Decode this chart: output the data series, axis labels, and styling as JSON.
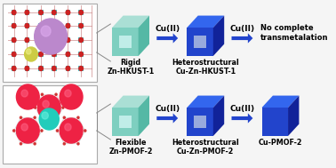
{
  "bg_color": "#f5f5f5",
  "teal_face": "#7ecfc0",
  "teal_top": "#aadfd5",
  "teal_side": "#55b8a5",
  "teal_notch": "#c0ede8",
  "blue_face": "#2244cc",
  "blue_top": "#3366ee",
  "blue_side": "#112299",
  "blue_notch": "#99aadd",
  "arrow_color": "#2244cc",
  "text_color": "#000000",
  "row1_labels": [
    "Rigid\nZn-HKUST-1",
    "Heterostructural\nCu-Zn-HKUST-1"
  ],
  "row2_labels": [
    "Flexible\nZn-PMOF-2",
    "Heterostructural\nCu-Zn-PMOF-2",
    "Cu-PMOF-2"
  ],
  "arrow_labels": [
    "Cu(II)",
    "Cu(II)",
    "Cu(II)",
    "Cu(II)"
  ],
  "no_complete_text": "No complete\ntransmetalation",
  "font_size_label": 5.8,
  "font_size_arrow": 6.5,
  "font_size_nocomplete": 6.0
}
